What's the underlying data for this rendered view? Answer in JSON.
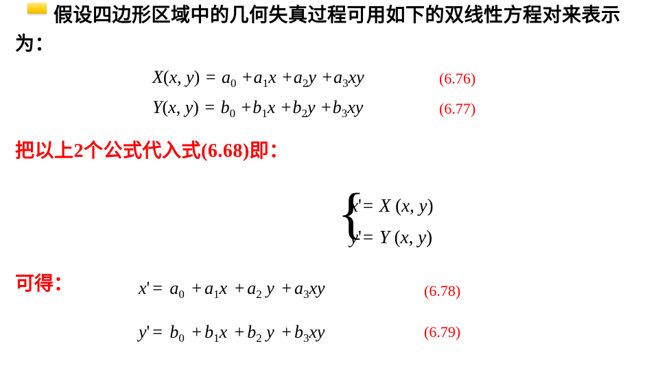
{
  "colors": {
    "background": "#ffffff",
    "text_black": "#000000",
    "text_red": "#ff0000",
    "accent_gradient_top": "#ffe680",
    "accent_gradient_bottom": "#e6b800"
  },
  "typography": {
    "body_font": "SimSun",
    "math_font": "Times New Roman",
    "body_fontsize_pt": 21,
    "math_fontsize_pt": 20,
    "sub_fontsize_pt": 13,
    "eqnum_fontsize_pt": 17,
    "body_weight": "bold"
  },
  "para1": "假设四边形区域中的几何失真过程可用如下的双线性方程对来表示为：",
  "equations": {
    "eq676": {
      "lhs": "X(x, y)",
      "rhs_terms": [
        "a_0",
        "a_1 x",
        "a_2 y",
        "a_3 xy"
      ],
      "label": "(6.76)"
    },
    "eq677": {
      "lhs": "Y(x, y)",
      "rhs_terms": [
        "b_0",
        "b_1 x",
        "b_2 y",
        "b_3 xy"
      ],
      "label": "(6.77)"
    },
    "eq678": {
      "lhs": "x'",
      "rhs_terms": [
        "a_0",
        "a_1 x",
        "a_2 y",
        "a_3 xy"
      ],
      "label": "(6.78)"
    },
    "eq679": {
      "lhs": "y'",
      "rhs_terms": [
        "b_0",
        "b_1 x",
        "b_2 y",
        "b_3 xy"
      ],
      "label": "(6.79)"
    },
    "system668": {
      "ref": "(6.68)",
      "line1_lhs": "x'",
      "line1_rhs": "X (x, y)",
      "line2_lhs": "y'",
      "line2_rhs": "Y (x, y)"
    }
  },
  "red_line": "把以上2个公式代入式(6.68)即：",
  "result_label": "可得："
}
